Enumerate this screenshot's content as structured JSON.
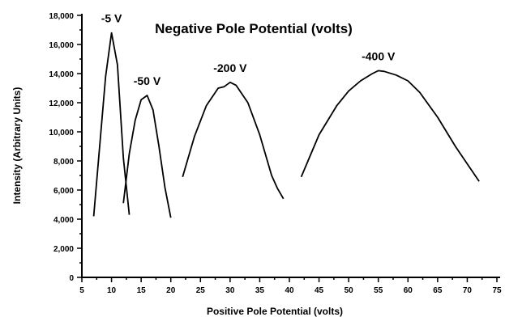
{
  "chart_data": {
    "type": "line",
    "title": "Negative Pole Potential (volts)",
    "xlabel": "Positive Pole Potential (volts)",
    "ylabel": "Intensity (Arbitrary Units)",
    "xlim": [
      5,
      75
    ],
    "ylim": [
      0,
      18000
    ],
    "x_ticks": [
      "5",
      "10",
      "15",
      "20",
      "25",
      "30",
      "35",
      "40",
      "45",
      "50",
      "55",
      "60",
      "65",
      "70",
      "75"
    ],
    "y_ticks": [
      "0",
      "2,000",
      "4,000",
      "6,000",
      "8,000",
      "10,000",
      "12,000",
      "14,000",
      "16,000",
      "18,000"
    ],
    "grid": false,
    "series": [
      {
        "name": "-5 V",
        "x": [
          7,
          9,
          10,
          11,
          12,
          13
        ],
        "y": [
          4200,
          13800,
          16800,
          14600,
          8200,
          4300
        ]
      },
      {
        "name": "-50 V",
        "x": [
          12,
          13,
          14,
          15,
          16,
          17,
          18,
          19,
          20
        ],
        "y": [
          5100,
          8500,
          10800,
          12200,
          12500,
          11500,
          9000,
          6200,
          4100
        ]
      },
      {
        "name": "-200 V",
        "x": [
          22,
          24,
          26,
          28,
          29,
          30,
          31,
          33,
          35,
          37,
          38,
          39
        ],
        "y": [
          6900,
          9700,
          11800,
          13000,
          13100,
          13400,
          13200,
          12000,
          9800,
          7000,
          6100,
          5400
        ]
      },
      {
        "name": "-400 V",
        "x": [
          42,
          45,
          48,
          50,
          52,
          54,
          55,
          56,
          58,
          60,
          62,
          65,
          68,
          70,
          72
        ],
        "y": [
          6900,
          9800,
          11800,
          12800,
          13500,
          14000,
          14200,
          14150,
          13900,
          13500,
          12700,
          11000,
          9000,
          7800,
          6600
        ]
      }
    ]
  }
}
